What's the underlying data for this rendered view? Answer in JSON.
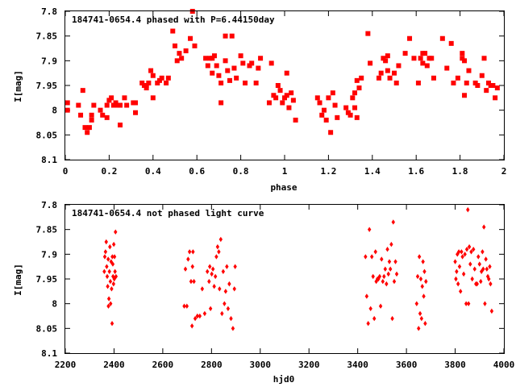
{
  "chart_data": [
    {
      "type": "scatter",
      "title": "184741-0654.4 phased with P=6.44150day",
      "xlabel": "phase",
      "ylabel": "I[mag]",
      "xlim": [
        0,
        2
      ],
      "ylim": [
        7.8,
        8.1
      ],
      "y_inverted": true,
      "xticks": [
        "0",
        "0.2",
        "0.4",
        "0.6",
        "0.8",
        "1",
        "1.2",
        "1.4",
        "1.6",
        "1.8",
        "2"
      ],
      "yticks": [
        "7.8",
        "7.85",
        "7.9",
        "7.95",
        "8",
        "8.05",
        "8.1"
      ],
      "grid": false,
      "legend": "none",
      "marker": "filled-square",
      "color": "#ff0000",
      "points": [
        [
          0.01,
          7.985
        ],
        [
          0.01,
          8.0
        ],
        [
          0.06,
          7.99
        ],
        [
          0.07,
          8.01
        ],
        [
          0.08,
          7.96
        ],
        [
          0.09,
          8.035
        ],
        [
          0.1,
          8.045
        ],
        [
          0.11,
          8.035
        ],
        [
          0.12,
          8.02
        ],
        [
          0.12,
          8.01
        ],
        [
          0.13,
          7.99
        ],
        [
          0.16,
          8.0
        ],
        [
          0.17,
          8.01
        ],
        [
          0.19,
          7.99
        ],
        [
          0.19,
          8.015
        ],
        [
          0.2,
          7.98
        ],
        [
          0.21,
          7.975
        ],
        [
          0.22,
          7.99
        ],
        [
          0.23,
          7.985
        ],
        [
          0.24,
          7.99
        ],
        [
          0.25,
          7.99
        ],
        [
          0.25,
          8.03
        ],
        [
          0.27,
          7.975
        ],
        [
          0.28,
          7.99
        ],
        [
          0.31,
          7.985
        ],
        [
          0.32,
          7.985
        ],
        [
          0.32,
          8.005
        ],
        [
          0.35,
          7.945
        ],
        [
          0.36,
          7.95
        ],
        [
          0.37,
          7.95
        ],
        [
          0.37,
          7.955
        ],
        [
          0.38,
          7.945
        ],
        [
          0.39,
          7.92
        ],
        [
          0.4,
          7.93
        ],
        [
          0.4,
          7.975
        ],
        [
          0.42,
          7.945
        ],
        [
          0.43,
          7.94
        ],
        [
          0.44,
          7.935
        ],
        [
          0.46,
          7.945
        ],
        [
          0.47,
          7.935
        ],
        [
          0.49,
          7.84
        ],
        [
          0.5,
          7.87
        ],
        [
          0.51,
          7.9
        ],
        [
          0.52,
          7.885
        ],
        [
          0.53,
          7.895
        ],
        [
          0.55,
          7.88
        ],
        [
          0.57,
          7.855
        ],
        [
          0.58,
          7.8
        ],
        [
          0.59,
          7.87
        ],
        [
          0.64,
          7.895
        ],
        [
          0.65,
          7.91
        ],
        [
          0.66,
          7.895
        ],
        [
          0.67,
          7.895
        ],
        [
          0.67,
          7.925
        ],
        [
          0.68,
          7.89
        ],
        [
          0.69,
          7.91
        ],
        [
          0.7,
          7.93
        ],
        [
          0.71,
          7.985
        ],
        [
          0.71,
          7.945
        ],
        [
          0.73,
          7.85
        ],
        [
          0.73,
          7.9
        ],
        [
          0.74,
          7.92
        ],
        [
          0.75,
          7.94
        ],
        [
          0.76,
          7.85
        ],
        [
          0.77,
          7.915
        ],
        [
          0.78,
          7.935
        ],
        [
          0.8,
          7.89
        ],
        [
          0.81,
          7.905
        ],
        [
          0.82,
          7.945
        ],
        [
          0.84,
          7.91
        ],
        [
          0.85,
          7.905
        ],
        [
          0.87,
          7.945
        ],
        [
          0.88,
          7.915
        ],
        [
          0.89,
          7.895
        ],
        [
          0.93,
          7.985
        ],
        [
          0.94,
          7.905
        ],
        [
          0.95,
          7.97
        ],
        [
          0.96,
          7.975
        ],
        [
          0.97,
          7.95
        ],
        [
          0.98,
          7.96
        ],
        [
          0.99,
          7.985
        ],
        [
          1.0,
          7.975
        ],
        [
          1.01,
          7.925
        ],
        [
          1.01,
          7.97
        ],
        [
          1.02,
          7.995
        ],
        [
          1.03,
          7.965
        ],
        [
          1.04,
          7.98
        ],
        [
          1.05,
          8.02
        ],
        [
          1.15,
          7.975
        ],
        [
          1.16,
          7.985
        ],
        [
          1.17,
          8.01
        ],
        [
          1.18,
          8.0
        ],
        [
          1.19,
          8.02
        ],
        [
          1.2,
          7.975
        ],
        [
          1.21,
          8.045
        ],
        [
          1.22,
          7.965
        ],
        [
          1.23,
          7.99
        ],
        [
          1.24,
          8.015
        ],
        [
          1.28,
          7.995
        ],
        [
          1.29,
          8.005
        ],
        [
          1.3,
          8.01
        ],
        [
          1.31,
          7.975
        ],
        [
          1.32,
          7.965
        ],
        [
          1.32,
          7.995
        ],
        [
          1.33,
          7.94
        ],
        [
          1.33,
          8.015
        ],
        [
          1.34,
          7.955
        ],
        [
          1.35,
          7.935
        ],
        [
          1.38,
          7.845
        ],
        [
          1.39,
          7.905
        ],
        [
          1.43,
          7.935
        ],
        [
          1.44,
          7.925
        ],
        [
          1.45,
          7.895
        ],
        [
          1.46,
          7.9
        ],
        [
          1.47,
          7.89
        ],
        [
          1.47,
          7.92
        ],
        [
          1.48,
          7.935
        ],
        [
          1.5,
          7.925
        ],
        [
          1.51,
          7.945
        ],
        [
          1.52,
          7.91
        ],
        [
          1.55,
          7.885
        ],
        [
          1.57,
          7.855
        ],
        [
          1.59,
          7.895
        ],
        [
          1.61,
          7.945
        ],
        [
          1.62,
          7.895
        ],
        [
          1.63,
          7.885
        ],
        [
          1.63,
          7.905
        ],
        [
          1.64,
          7.885
        ],
        [
          1.65,
          7.91
        ],
        [
          1.66,
          7.895
        ],
        [
          1.67,
          7.895
        ],
        [
          1.68,
          7.935
        ],
        [
          1.72,
          7.855
        ],
        [
          1.74,
          7.915
        ],
        [
          1.76,
          7.865
        ],
        [
          1.77,
          7.945
        ],
        [
          1.79,
          7.935
        ],
        [
          1.81,
          7.885
        ],
        [
          1.81,
          7.895
        ],
        [
          1.82,
          7.9
        ],
        [
          1.82,
          7.97
        ],
        [
          1.83,
          7.945
        ],
        [
          1.84,
          7.92
        ],
        [
          1.87,
          7.945
        ],
        [
          1.88,
          7.95
        ],
        [
          1.9,
          7.93
        ],
        [
          1.91,
          7.895
        ],
        [
          1.92,
          7.96
        ],
        [
          1.93,
          7.945
        ],
        [
          1.94,
          7.95
        ],
        [
          1.95,
          7.95
        ],
        [
          1.96,
          7.975
        ],
        [
          1.97,
          7.955
        ]
      ]
    },
    {
      "type": "scatter",
      "title": "184741-0654.4 not phased light curve",
      "xlabel": "hjd0",
      "ylabel": "I[mag]",
      "xlim": [
        2200,
        4000
      ],
      "ylim": [
        7.8,
        8.1
      ],
      "y_inverted": true,
      "xticks": [
        "2200",
        "2400",
        "2600",
        "2800",
        "3000",
        "3200",
        "3400",
        "3600",
        "3800",
        "4000"
      ],
      "yticks": [
        "7.8",
        "7.85",
        "7.9",
        "7.95",
        "8",
        "8.05",
        "8.1"
      ],
      "grid": false,
      "legend": "none",
      "marker": "diamond",
      "color": "#ff0000",
      "points": [
        [
          2360,
          7.935
        ],
        [
          2362,
          7.905
        ],
        [
          2365,
          7.895
        ],
        [
          2368,
          7.875
        ],
        [
          2370,
          7.925
        ],
        [
          2372,
          7.945
        ],
        [
          2374,
          7.965
        ],
        [
          2376,
          7.91
        ],
        [
          2377,
          8.005
        ],
        [
          2379,
          7.99
        ],
        [
          2381,
          7.935
        ],
        [
          2383,
          7.885
        ],
        [
          2385,
          7.955
        ],
        [
          2386,
          8.0
        ],
        [
          2388,
          7.915
        ],
        [
          2390,
          7.97
        ],
        [
          2392,
          8.04
        ],
        [
          2393,
          7.905
        ],
        [
          2395,
          7.92
        ],
        [
          2396,
          7.945
        ],
        [
          2398,
          7.96
        ],
        [
          2399,
          7.88
        ],
        [
          2401,
          7.95
        ],
        [
          2402,
          7.905
        ],
        [
          2404,
          7.935
        ],
        [
          2406,
          7.855
        ],
        [
          2408,
          7.945
        ],
        [
          2688,
          8.005
        ],
        [
          2693,
          7.93
        ],
        [
          2699,
          8.005
        ],
        [
          2704,
          7.91
        ],
        [
          2710,
          7.895
        ],
        [
          2716,
          7.955
        ],
        [
          2720,
          8.045
        ],
        [
          2722,
          7.925
        ],
        [
          2724,
          7.895
        ],
        [
          2728,
          7.955
        ],
        [
          2733,
          8.03
        ],
        [
          2742,
          8.025
        ],
        [
          2752,
          8.025
        ],
        [
          2762,
          7.97
        ],
        [
          2772,
          8.02
        ],
        [
          2783,
          7.935
        ],
        [
          2790,
          7.955
        ],
        [
          2793,
          7.925
        ],
        [
          2796,
          8.01
        ],
        [
          2801,
          7.94
        ],
        [
          2806,
          7.93
        ],
        [
          2811,
          7.965
        ],
        [
          2816,
          7.945
        ],
        [
          2820,
          7.905
        ],
        [
          2825,
          7.885
        ],
        [
          2830,
          7.895
        ],
        [
          2833,
          7.97
        ],
        [
          2838,
          7.87
        ],
        [
          2843,
          8.02
        ],
        [
          2848,
          7.935
        ],
        [
          2853,
          8.0
        ],
        [
          2858,
          7.975
        ],
        [
          2863,
          7.925
        ],
        [
          2868,
          8.01
        ],
        [
          2873,
          7.96
        ],
        [
          2880,
          8.03
        ],
        [
          2888,
          8.05
        ],
        [
          2894,
          7.97
        ],
        [
          2897,
          7.925
        ],
        [
          3432,
          7.905
        ],
        [
          3437,
          7.985
        ],
        [
          3443,
          8.04
        ],
        [
          3448,
          7.85
        ],
        [
          3453,
          8.01
        ],
        [
          3458,
          7.905
        ],
        [
          3463,
          7.945
        ],
        [
          3468,
          8.03
        ],
        [
          3473,
          7.895
        ],
        [
          3476,
          7.955
        ],
        [
          3481,
          7.95
        ],
        [
          3485,
          7.95
        ],
        [
          3490,
          7.945
        ],
        [
          3494,
          8.005
        ],
        [
          3498,
          7.91
        ],
        [
          3503,
          7.955
        ],
        [
          3508,
          7.945
        ],
        [
          3513,
          7.93
        ],
        [
          3518,
          7.96
        ],
        [
          3522,
          7.89
        ],
        [
          3526,
          7.94
        ],
        [
          3530,
          7.915
        ],
        [
          3534,
          7.93
        ],
        [
          3538,
          7.88
        ],
        [
          3542,
          8.03
        ],
        [
          3546,
          7.835
        ],
        [
          3550,
          7.955
        ],
        [
          3555,
          7.915
        ],
        [
          3560,
          7.94
        ],
        [
          3642,
          8.0
        ],
        [
          3646,
          7.945
        ],
        [
          3650,
          8.05
        ],
        [
          3653,
          7.905
        ],
        [
          3656,
          8.02
        ],
        [
          3659,
          7.95
        ],
        [
          3662,
          8.03
        ],
        [
          3665,
          7.965
        ],
        [
          3668,
          7.915
        ],
        [
          3671,
          7.985
        ],
        [
          3674,
          7.935
        ],
        [
          3677,
          8.04
        ],
        [
          3680,
          7.955
        ],
        [
          3800,
          7.915
        ],
        [
          3803,
          7.95
        ],
        [
          3806,
          7.935
        ],
        [
          3809,
          7.9
        ],
        [
          3812,
          7.96
        ],
        [
          3815,
          7.895
        ],
        [
          3818,
          7.925
        ],
        [
          3822,
          7.975
        ],
        [
          3826,
          7.895
        ],
        [
          3830,
          7.905
        ],
        [
          3835,
          7.94
        ],
        [
          3840,
          7.9
        ],
        [
          3845,
          8.0
        ],
        [
          3848,
          7.89
        ],
        [
          3852,
          7.81
        ],
        [
          3855,
          8.0
        ],
        [
          3858,
          7.885
        ],
        [
          3862,
          7.92
        ],
        [
          3866,
          7.895
        ],
        [
          3870,
          7.95
        ],
        [
          3875,
          7.89
        ],
        [
          3880,
          7.93
        ],
        [
          3885,
          7.96
        ],
        [
          3890,
          7.96
        ],
        [
          3895,
          7.905
        ],
        [
          3900,
          7.92
        ],
        [
          3905,
          7.955
        ],
        [
          3908,
          7.935
        ],
        [
          3912,
          7.895
        ],
        [
          3915,
          7.93
        ],
        [
          3918,
          7.845
        ],
        [
          3922,
          8.0
        ],
        [
          3926,
          7.91
        ],
        [
          3930,
          7.93
        ],
        [
          3934,
          7.945
        ],
        [
          3938,
          7.95
        ],
        [
          3942,
          7.925
        ],
        [
          3945,
          7.96
        ],
        [
          3950,
          8.015
        ]
      ]
    }
  ]
}
